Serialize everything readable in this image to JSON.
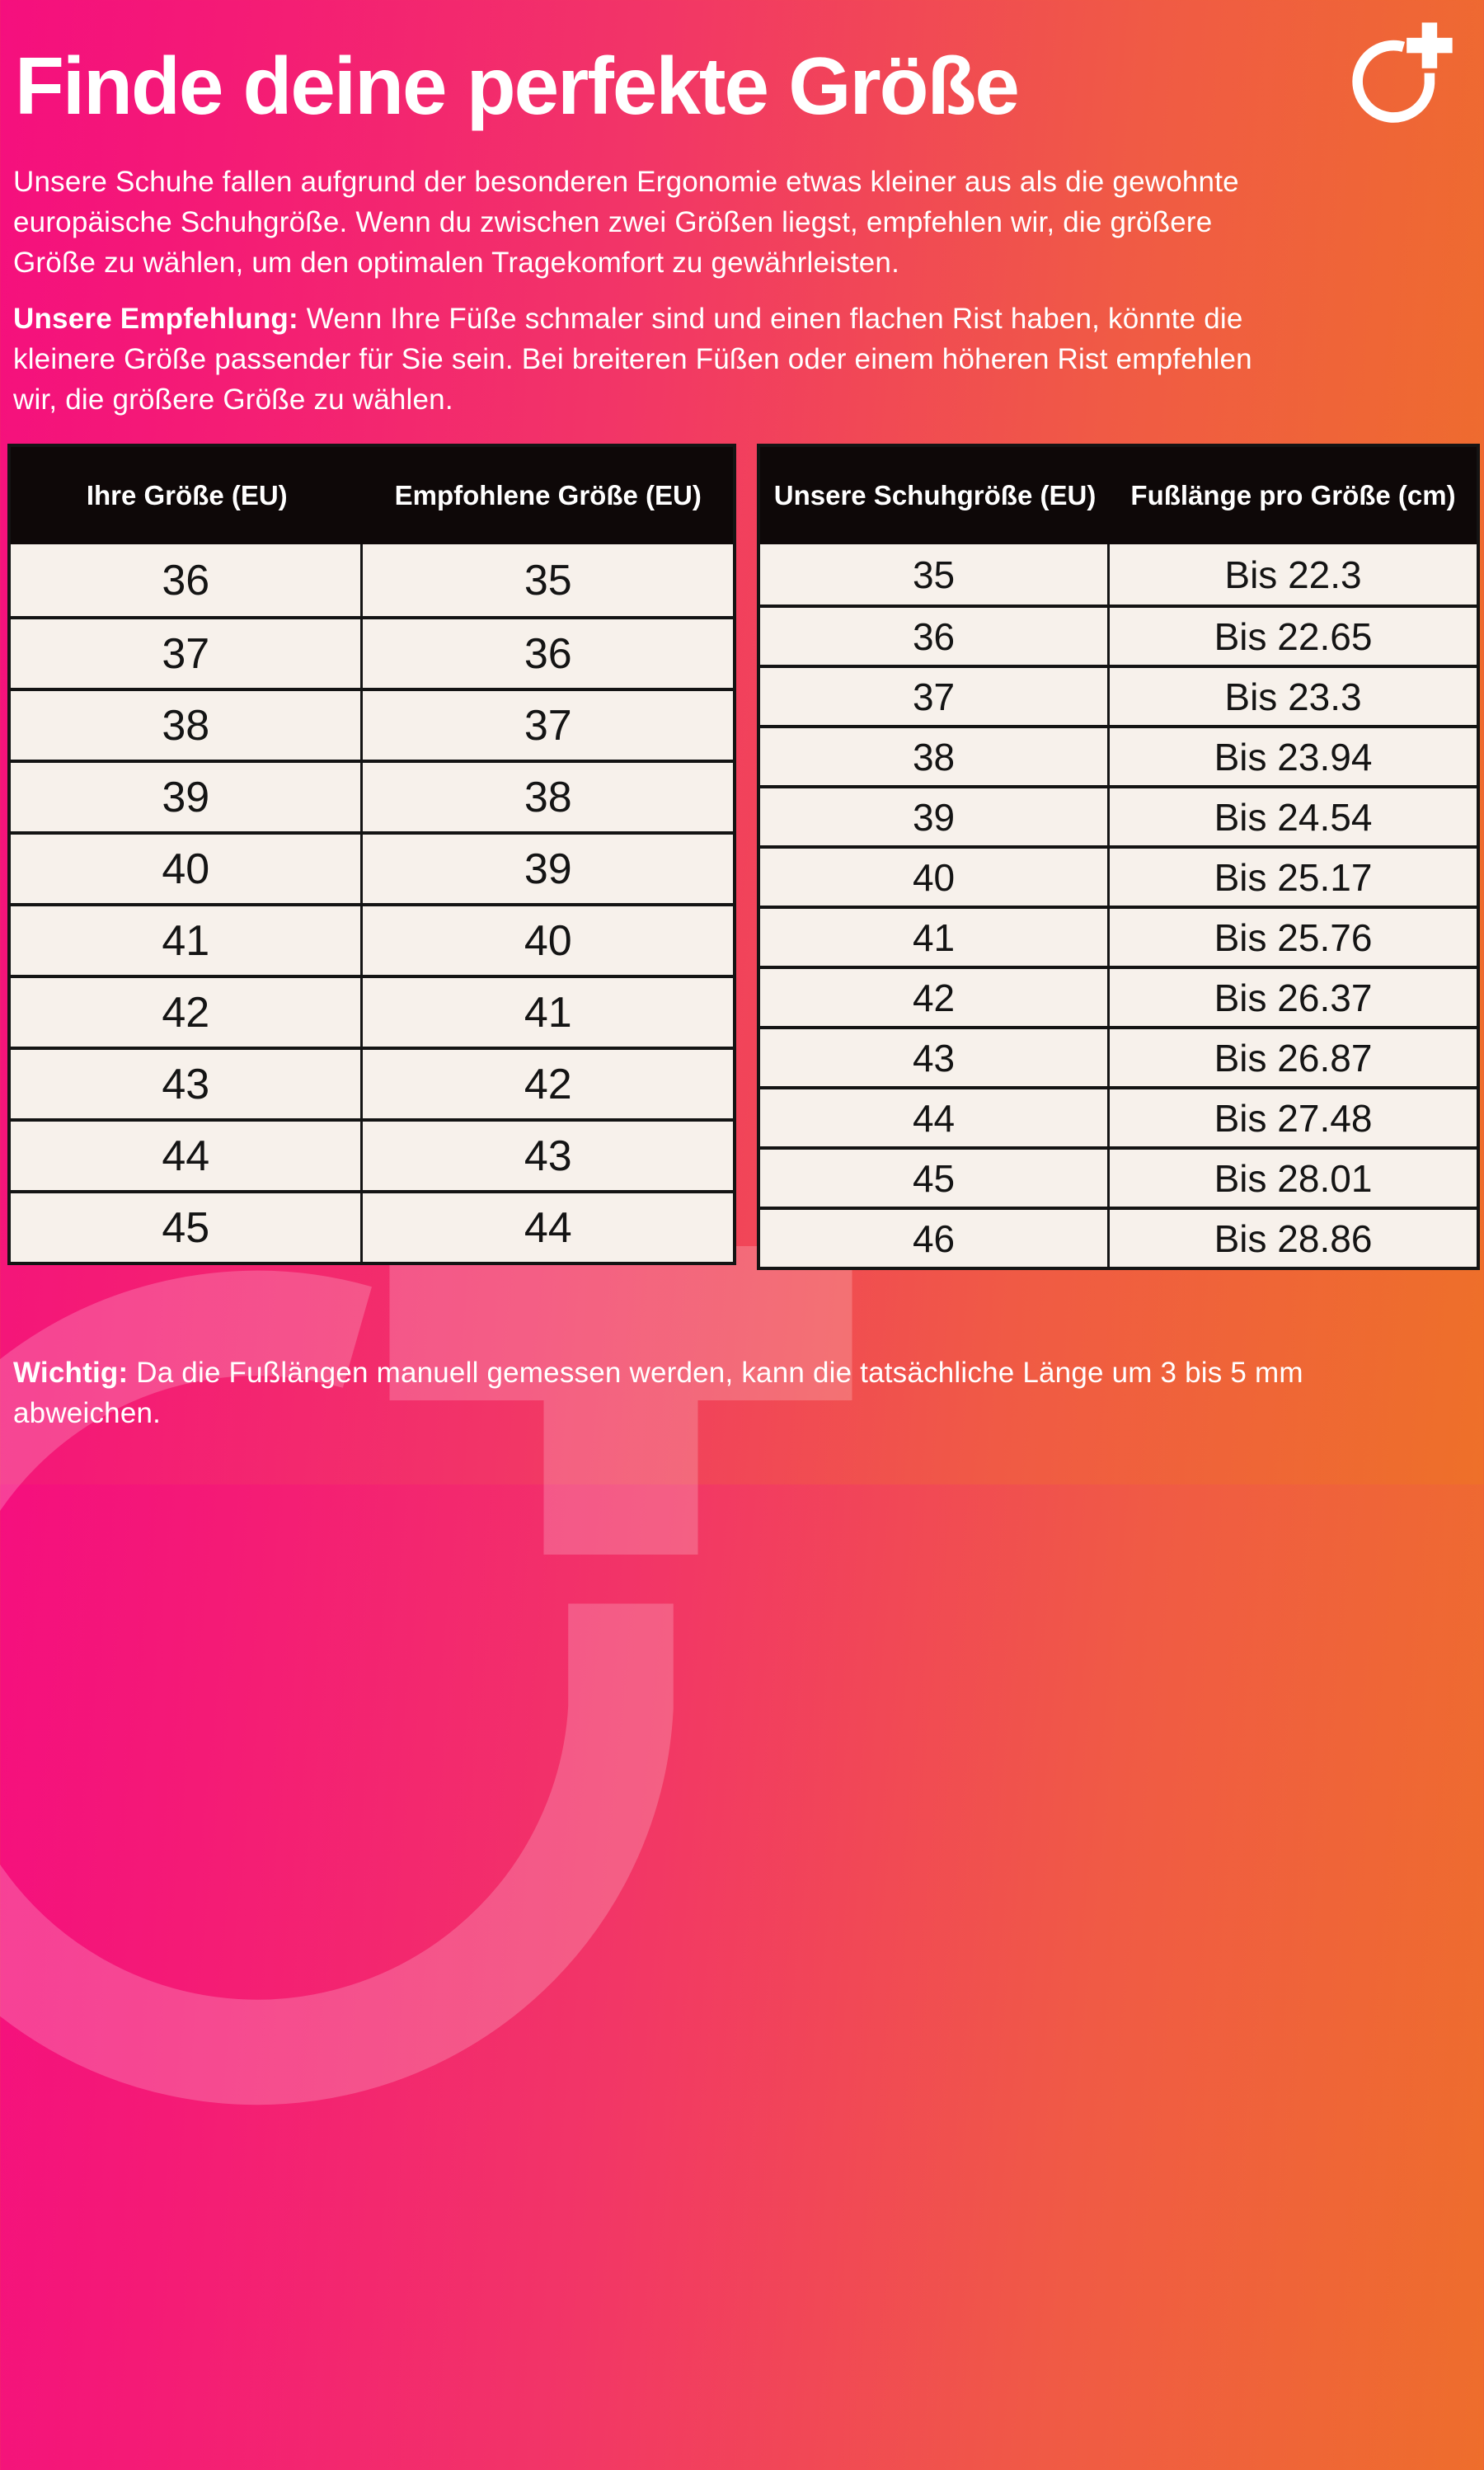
{
  "header": {
    "title": "Finde deine perfekte Größe"
  },
  "intro": {
    "lines": [
      "Unsere Schuhe fallen aufgrund der besonderen Ergonomie etwas kleiner aus als die gewohnte",
      "europäische Schuhgröße. Wenn du zwischen zwei Größen liegst, empfehlen wir, die größere",
      "Größe zu wählen, um den optimalen Tragekomfort zu gewährleisten."
    ]
  },
  "recommendation": {
    "label": "Unsere Empfehlung:",
    "line1_rest": " Wenn Ihre Füße schmaler sind und einen flachen Rist haben, könnte die",
    "lines": [
      "kleinere Größe passender für Sie sein. Bei breiteren Füßen oder einem höheren Rist empfehlen",
      "wir, die größere Größe zu wählen."
    ]
  },
  "size_table": {
    "headers": [
      "Ihre Größe (EU)",
      "Empfohlene Größe (EU)"
    ],
    "rows": [
      [
        "36",
        "35"
      ],
      [
        "37",
        "36"
      ],
      [
        "38",
        "37"
      ],
      [
        "39",
        "38"
      ],
      [
        "40",
        "39"
      ],
      [
        "41",
        "40"
      ],
      [
        "42",
        "41"
      ],
      [
        "43",
        "42"
      ],
      [
        "44",
        "43"
      ],
      [
        "45",
        "44"
      ]
    ]
  },
  "length_table": {
    "headers": [
      "Unsere Schuhgröße (EU)",
      "Fußlänge pro Größe (cm)"
    ],
    "rows": [
      [
        "35",
        "Bis 22.3"
      ],
      [
        "36",
        "Bis 22.65"
      ],
      [
        "37",
        "Bis 23.3"
      ],
      [
        "38",
        "Bis 23.94"
      ],
      [
        "39",
        "Bis 24.54"
      ],
      [
        "40",
        "Bis 25.17"
      ],
      [
        "41",
        "Bis 25.76"
      ],
      [
        "42",
        "Bis 26.37"
      ],
      [
        "43",
        "Bis 26.87"
      ],
      [
        "44",
        "Bis 27.48"
      ],
      [
        "45",
        "Bis 28.01"
      ],
      [
        "46",
        "Bis 28.86"
      ]
    ]
  },
  "note": {
    "label": "Wichtig:",
    "line1_rest": " Da die Fußlängen manuell gemessen werden, kann die tatsächliche Länge um 3 bis 5 mm",
    "lines": [
      "abweichen."
    ]
  },
  "brand": {
    "logo": "circle-plus-logo"
  },
  "colors": {
    "gradient_start": "#f50f7e",
    "gradient_end": "#ee7029",
    "table_header_bg": "#0e0808",
    "table_cell_bg": "#f7f1eb",
    "table_border": "#141414",
    "text": "#ffffff"
  }
}
